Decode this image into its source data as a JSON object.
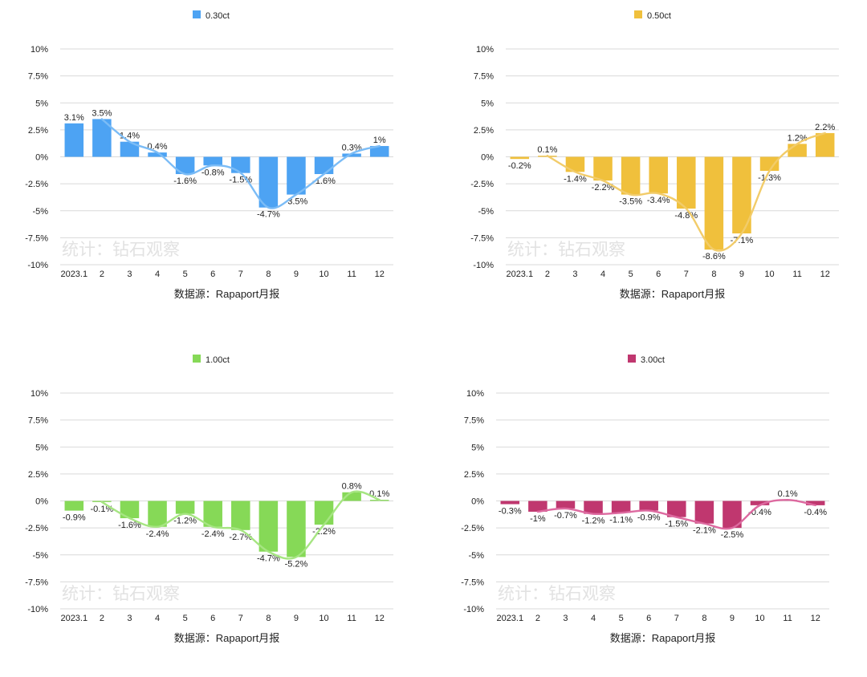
{
  "source_label": "数据源：Rapaport月报",
  "watermark": "统计：钻石观察",
  "chart_data": [
    {
      "type": "bar",
      "categories": [
        "2023.1",
        "2",
        "3",
        "4",
        "5",
        "6",
        "7",
        "8",
        "9",
        "10",
        "11",
        "12"
      ],
      "series": [
        {
          "name": "0.30ct",
          "color": "#4da3f3",
          "line_color": "#7bbcf6",
          "values": [
            3.1,
            3.5,
            1.4,
            0.4,
            -1.6,
            -0.8,
            -1.5,
            -4.7,
            -3.5,
            -1.6,
            0.3,
            1
          ]
        }
      ],
      "value_labels": [
        "3.1%",
        "3.5%",
        "1.4%",
        "0.4%",
        "-1.6%",
        "-0.8%",
        "-1.5%",
        "-4.7%",
        "-3.5%",
        "-1.6%",
        "0.3%",
        "1%"
      ],
      "y_ticks": [
        "10%",
        "7.5%",
        "5%",
        "2.5%",
        "0%",
        "-2.5%",
        "-5%",
        "-7.5%",
        "-10%"
      ],
      "ylim": [
        -10,
        10
      ],
      "overlay": "smoothed trend line",
      "legend_position": "top-center",
      "grid": true
    },
    {
      "type": "bar",
      "categories": [
        "2023.1",
        "2",
        "3",
        "4",
        "5",
        "6",
        "7",
        "8",
        "9",
        "10",
        "11",
        "12"
      ],
      "series": [
        {
          "name": "0.50ct",
          "color": "#f0c03c",
          "line_color": "#f2cc6a",
          "values": [
            -0.2,
            0.1,
            -1.4,
            -2.2,
            -3.5,
            -3.4,
            -4.8,
            -8.6,
            -7.1,
            -1.3,
            1.2,
            2.2
          ]
        }
      ],
      "value_labels": [
        "-0.2%",
        "0.1%",
        "-1.4%",
        "-2.2%",
        "-3.5%",
        "-3.4%",
        "-4.8%",
        "-8.6%",
        "-7.1%",
        "-1.3%",
        "1.2%",
        "2.2%"
      ],
      "y_ticks": [
        "10%",
        "7.5%",
        "5%",
        "2.5%",
        "0%",
        "-2.5%",
        "-5%",
        "-7.5%",
        "-10%"
      ],
      "ylim": [
        -10,
        10
      ],
      "overlay": "smoothed trend line",
      "legend_position": "top-center",
      "grid": true
    },
    {
      "type": "bar",
      "categories": [
        "2023.1",
        "2",
        "3",
        "4",
        "5",
        "6",
        "7",
        "8",
        "9",
        "10",
        "11",
        "12"
      ],
      "series": [
        {
          "name": "1.00ct",
          "color": "#86d957",
          "line_color": "#a6e582",
          "values": [
            -0.9,
            -0.1,
            -1.6,
            -2.4,
            -1.2,
            -2.4,
            -2.7,
            -4.7,
            -5.2,
            -2.2,
            0.8,
            0.1
          ]
        }
      ],
      "value_labels": [
        "-0.9%",
        "-0.1%",
        "-1.6%",
        "-2.4%",
        "-1.2%",
        "-2.4%",
        "-2.7%",
        "-4.7%",
        "-5.2%",
        "-2.2%",
        "0.8%",
        "0.1%"
      ],
      "y_ticks": [
        "10%",
        "7.5%",
        "5%",
        "2.5%",
        "0%",
        "-2.5%",
        "-5%",
        "-7.5%",
        "-10%"
      ],
      "ylim": [
        -10,
        10
      ],
      "overlay": "smoothed trend line",
      "legend_position": "top-center",
      "grid": true
    },
    {
      "type": "bar",
      "categories": [
        "2023.1",
        "2",
        "3",
        "4",
        "5",
        "6",
        "7",
        "8",
        "9",
        "10",
        "11",
        "12"
      ],
      "series": [
        {
          "name": "3.00ct",
          "color": "#c0376f",
          "line_color": "#dd6aa0",
          "values": [
            -0.3,
            -1,
            -0.7,
            -1.2,
            -1.1,
            -0.9,
            -1.5,
            -2.1,
            -2.5,
            -0.4,
            0.1,
            -0.4
          ]
        }
      ],
      "value_labels": [
        "-0.3%",
        "-1%",
        "-0.7%",
        "-1.2%",
        "-1.1%",
        "-0.9%",
        "-1.5%",
        "-2.1%",
        "-2.5%",
        "-0.4%",
        "0.1%",
        "-0.4%"
      ],
      "y_ticks": [
        "10%",
        "7.5%",
        "5%",
        "2.5%",
        "0%",
        "-2.5%",
        "-5%",
        "-7.5%",
        "-10%"
      ],
      "ylim": [
        -10,
        10
      ],
      "overlay": "smoothed trend line",
      "legend_position": "top-center",
      "grid": true
    }
  ]
}
